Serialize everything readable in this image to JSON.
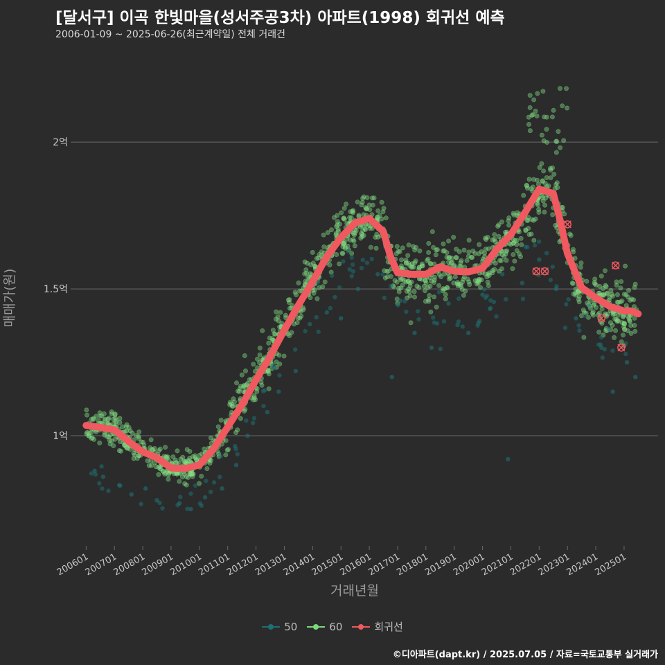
{
  "header": {
    "title": "[달서구] 이곡 한빛마을(성서주공3차) 아파트(1998) 회귀선 예측",
    "subtitle": "2006-01-09 ~ 2025-06-26(최근계약일) 전체 거래건"
  },
  "footer": {
    "credit": "©디아파트(dapt.kr) / 2025.07.05 / 자료=국토교통부 실거래가"
  },
  "colors": {
    "background": "#2b2b2c",
    "grid": "#6a6a6a",
    "series_50": "#1f6f73",
    "series_60": "#7bd97b",
    "regression": "#f0595f"
  },
  "chart_data": {
    "type": "scatter",
    "title": "[달서구] 이곡 한빛마을(성서주공3차) 아파트(1998) 회귀선 예측",
    "xlabel": "거래년월",
    "ylabel": "매매가(원)",
    "x_tick_labels": [
      "200601",
      "200701",
      "200801",
      "200901",
      "201001",
      "201101",
      "201201",
      "201301",
      "201401",
      "201501",
      "201601",
      "201701",
      "201801",
      "201901",
      "202001",
      "202101",
      "202201",
      "202301",
      "202401",
      "202501"
    ],
    "y_ticks": [
      100000000,
      150000000,
      200000000
    ],
    "y_tick_labels": [
      "1억",
      "1.5억",
      "2억"
    ],
    "xlim": [
      2005.6,
      2026.2
    ],
    "ylim": [
      62000000,
      226000000
    ],
    "grid": true,
    "legend": {
      "position": "bottom",
      "entries": [
        "50",
        "60",
        "회귀선"
      ]
    },
    "series": [
      {
        "name": "50",
        "trend": [
          [
            2006.0,
            88000000
          ],
          [
            2007.0,
            84000000
          ],
          [
            2008.0,
            79000000
          ],
          [
            2009.0,
            78000000
          ],
          [
            2010.0,
            80000000
          ],
          [
            2011.0,
            92000000
          ],
          [
            2012.0,
            110000000
          ],
          [
            2013.0,
            125000000
          ],
          [
            2014.0,
            140000000
          ],
          [
            2015.0,
            155000000
          ],
          [
            2016.0,
            160000000
          ],
          [
            2017.0,
            145000000
          ],
          [
            2018.0,
            140000000
          ],
          [
            2019.0,
            140000000
          ],
          [
            2020.0,
            140000000
          ],
          [
            2021.0,
            150000000
          ],
          [
            2022.0,
            165000000
          ],
          [
            2023.0,
            145000000
          ],
          [
            2024.0,
            135000000
          ],
          [
            2025.0,
            130000000
          ],
          [
            2025.5,
            128000000
          ]
        ],
        "points": [
          [
            2006.3,
            88000000
          ],
          [
            2006.6,
            86000000
          ],
          [
            2007.2,
            83000000
          ],
          [
            2007.6,
            80000000
          ],
          [
            2008.1,
            82000000
          ],
          [
            2008.5,
            78000000
          ],
          [
            2009.3,
            77000000
          ],
          [
            2009.7,
            75000000
          ],
          [
            2010.2,
            79000000
          ],
          [
            2010.8,
            82000000
          ],
          [
            2011.3,
            90000000
          ],
          [
            2011.7,
            100000000
          ],
          [
            2012.4,
            108000000
          ],
          [
            2012.8,
            115000000
          ],
          [
            2013.4,
            122000000
          ],
          [
            2013.9,
            138000000
          ],
          [
            2014.5,
            142000000
          ],
          [
            2015.0,
            140000000
          ],
          [
            2015.6,
            150000000
          ],
          [
            2016.3,
            155000000
          ],
          [
            2016.8,
            120000000
          ],
          [
            2017.1,
            146000000
          ],
          [
            2017.6,
            135000000
          ],
          [
            2018.2,
            130000000
          ],
          [
            2018.8,
            145000000
          ],
          [
            2019.5,
            135000000
          ],
          [
            2020.0,
            148000000
          ],
          [
            2020.7,
            155000000
          ],
          [
            2020.9,
            92000000
          ],
          [
            2021.4,
            152000000
          ],
          [
            2022.0,
            160000000
          ],
          [
            2022.6,
            150000000
          ],
          [
            2023.3,
            140000000
          ],
          [
            2024.2,
            130000000
          ],
          [
            2024.6,
            115000000
          ],
          [
            2025.1,
            125000000
          ],
          [
            2025.4,
            120000000
          ]
        ]
      },
      {
        "name": "60",
        "trend": [
          [
            2006.0,
            104000000
          ],
          [
            2006.5,
            103500000
          ],
          [
            2007.0,
            102500000
          ],
          [
            2007.5,
            98500000
          ],
          [
            2008.0,
            95000000
          ],
          [
            2008.5,
            92500000
          ],
          [
            2009.0,
            89000000
          ],
          [
            2009.5,
            89000000
          ],
          [
            2010.0,
            90500000
          ],
          [
            2010.5,
            96000000
          ],
          [
            2011.0,
            103500000
          ],
          [
            2011.5,
            111000000
          ],
          [
            2012.0,
            119500000
          ],
          [
            2012.5,
            128000000
          ],
          [
            2013.0,
            136500000
          ],
          [
            2013.5,
            145000000
          ],
          [
            2014.0,
            153500000
          ],
          [
            2014.5,
            162000000
          ],
          [
            2015.0,
            168500000
          ],
          [
            2015.5,
            173000000
          ],
          [
            2016.0,
            174000000
          ],
          [
            2016.5,
            170000000
          ],
          [
            2016.75,
            161000000
          ],
          [
            2017.0,
            155500000
          ],
          [
            2017.5,
            155000000
          ],
          [
            2018.0,
            155000000
          ],
          [
            2018.5,
            157000000
          ],
          [
            2019.0,
            156000000
          ],
          [
            2019.5,
            156000000
          ],
          [
            2020.0,
            157000000
          ],
          [
            2020.5,
            163000000
          ],
          [
            2021.0,
            168000000
          ],
          [
            2021.5,
            176000000
          ],
          [
            2022.0,
            183500000
          ],
          [
            2022.5,
            182500000
          ],
          [
            2022.75,
            173000000
          ],
          [
            2023.0,
            162000000
          ],
          [
            2023.5,
            150000000
          ],
          [
            2024.0,
            147000000
          ],
          [
            2024.5,
            144000000
          ],
          [
            2025.0,
            142500000
          ],
          [
            2025.4,
            142000000
          ]
        ]
      }
    ],
    "regression": [
      [
        2006.0,
        103500000
      ],
      [
        2006.5,
        102800000
      ],
      [
        2007.0,
        102000000
      ],
      [
        2007.5,
        98000000
      ],
      [
        2008.0,
        94500000
      ],
      [
        2008.5,
        92500000
      ],
      [
        2009.0,
        89000000
      ],
      [
        2009.5,
        88800000
      ],
      [
        2010.0,
        90000000
      ],
      [
        2010.5,
        95500000
      ],
      [
        2011.0,
        103000000
      ],
      [
        2011.5,
        110500000
      ],
      [
        2012.0,
        119000000
      ],
      [
        2012.5,
        127000000
      ],
      [
        2013.0,
        136000000
      ],
      [
        2013.5,
        144500000
      ],
      [
        2014.0,
        152500000
      ],
      [
        2014.5,
        161000000
      ],
      [
        2015.0,
        167500000
      ],
      [
        2015.5,
        172500000
      ],
      [
        2016.0,
        174000000
      ],
      [
        2016.5,
        169500000
      ],
      [
        2016.75,
        161000000
      ],
      [
        2017.0,
        155500000
      ],
      [
        2017.5,
        155000000
      ],
      [
        2018.0,
        155000000
      ],
      [
        2018.5,
        157500000
      ],
      [
        2019.0,
        156000000
      ],
      [
        2019.5,
        155800000
      ],
      [
        2020.0,
        157000000
      ],
      [
        2020.5,
        163500000
      ],
      [
        2021.0,
        168500000
      ],
      [
        2021.5,
        176000000
      ],
      [
        2022.0,
        184000000
      ],
      [
        2022.5,
        182500000
      ],
      [
        2022.75,
        173000000
      ],
      [
        2023.0,
        162000000
      ],
      [
        2023.5,
        150500000
      ],
      [
        2024.0,
        147000000
      ],
      [
        2024.5,
        144000000
      ],
      [
        2025.0,
        142500000
      ],
      [
        2025.25,
        142500000
      ],
      [
        2025.5,
        141500000
      ]
    ],
    "regression_outliers": [
      [
        2021.9,
        156000000
      ],
      [
        2022.2,
        156000000
      ],
      [
        2023.0,
        172000000
      ],
      [
        2024.2,
        140000000
      ],
      [
        2024.7,
        158000000
      ],
      [
        2024.9,
        130000000
      ]
    ]
  }
}
